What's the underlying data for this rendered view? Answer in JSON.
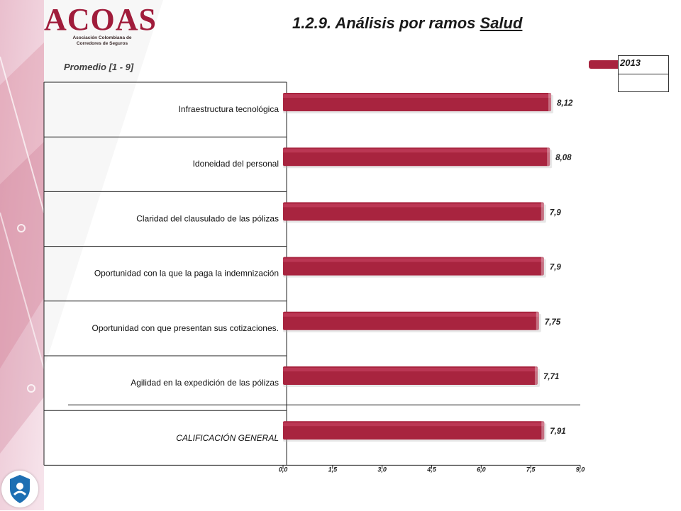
{
  "logo": {
    "word": "ACOAS",
    "line1": "Asociación Colombiana de",
    "line2": "Corredores de Seguros"
  },
  "header": {
    "title_main": "1.2.9. Análisis por ramos ",
    "title_em": "Salud",
    "subtitle": "Promedio  [1 - 9]"
  },
  "legend": {
    "label": "2013",
    "color": "#a8243f"
  },
  "chart_data": {
    "type": "bar",
    "orientation": "horizontal",
    "categories": [
      "Infraestructura tecnológica",
      "Idoneidad del personal",
      "Claridad del clausulado de las pólizas",
      "Oportunidad con la que la paga la indemnización",
      "Oportunidad con que presentan sus cotizaciones.",
      "Agilidad en la expedición de las pólizas",
      "CALIFICACIÓN GENERAL"
    ],
    "series": [
      {
        "name": "2013",
        "values": [
          8.12,
          8.08,
          7.9,
          7.9,
          7.75,
          7.71,
          7.91
        ],
        "value_labels": [
          "8,12",
          "8,08",
          "7,9",
          "7,9",
          "7,75",
          "7,71",
          "7,91"
        ],
        "color": "#a8243f"
      }
    ],
    "xlim": [
      0,
      9
    ],
    "xticks": [
      0,
      1.5,
      3,
      4.5,
      6,
      7.5,
      9
    ],
    "xtick_labels": [
      "0,0",
      "1,5",
      "3,0",
      "4,5",
      "6,0",
      "7,5",
      "9,0"
    ],
    "legend_position": "top-right"
  }
}
